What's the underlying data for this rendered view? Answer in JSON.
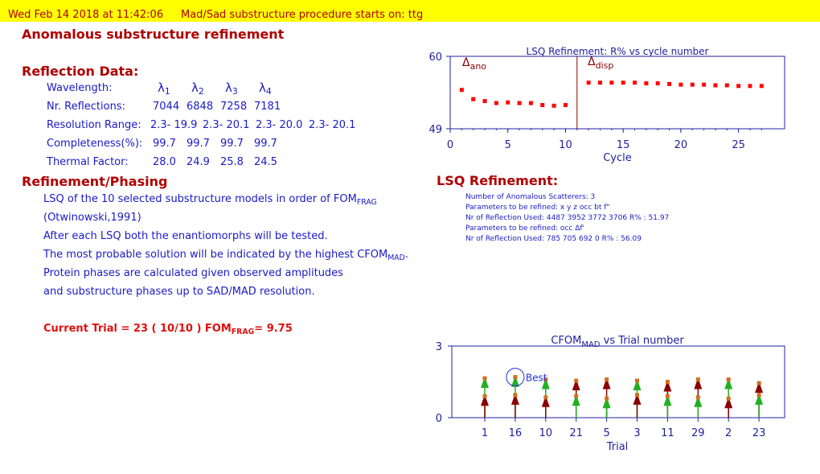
{
  "banner": {
    "datetime": "Wed Feb 14  2018 at 11:42:06",
    "message": "Mad/Sad substructure procedure starts on: ttg"
  },
  "title": "Anomalous substructure refinement",
  "reflection": {
    "heading": "Reflection Data:",
    "wavelength_label": "Wavelength:",
    "lambda_symbol": "λ",
    "lambda_subs": [
      "1",
      "2",
      "3",
      "4"
    ],
    "rows": [
      {
        "label": "Nr. Reflections:",
        "values": [
          "7044",
          "6848",
          "7258",
          "7181"
        ]
      },
      {
        "label": "Resolution Range:",
        "values": [
          "2.3- 19.9",
          "2.3- 20.1",
          "2.3- 20.0",
          "2.3- 20.1"
        ]
      },
      {
        "label": "Completeness(%):",
        "values": [
          "99.7",
          "99.7",
          "99.7",
          "99.7"
        ]
      },
      {
        "label": "Thermal Factor:",
        "values": [
          "28.0",
          "24.9",
          "25.8",
          "24.5"
        ]
      }
    ]
  },
  "refinement": {
    "heading": "Refinement/Phasing",
    "line1_main": "LSQ of the 10 selected substructure models in order of FOM",
    "line1_sub": "FRAG",
    "line2": "(Otwinowski,1991)",
    "line3": "After each LSQ both the enantiomorphs will be tested.",
    "line4_main": "The most probable solution will be indicated by the highest CFOM",
    "line4_sub": "MAD",
    "line4_end": ".",
    "line5": "Protein phases are calculated given observed amplitudes",
    "line6": "and substructure phases up to SAD/MAD resolution."
  },
  "current_trial": {
    "prefix": "Current Trial = 23 ( 10/10 ) FOM",
    "sub": "FRAG",
    "suffix": "= 9.75"
  },
  "lsq_chart": {
    "title": "LSQ Refinement: R% vs cycle number",
    "xlabel": "Cycle",
    "ano_label": "Δ",
    "ano_sub": "ano",
    "disp_label": "Δ",
    "disp_sub": "disp"
  },
  "lsq_info": {
    "heading": "LSQ Refinement:",
    "lines": [
      "Number of Anomalous Scatterers:    3",
      "Parameters to be refined: x y z occ bt f\"",
      "Nr of Reflection Used:   4487  3952  3772  3706    R% :  51.97",
      "Parameters to be refined: occ Δf'",
      "Nr of Reflection Used:    785    705    692      0    R% : 56.09"
    ]
  },
  "cfom_chart": {
    "title_main": "CFOM",
    "title_sub": "MAD",
    "title_end": " vs Trial number",
    "xlabel": "Trial",
    "best_label": "Best"
  },
  "colors": {
    "banner_bg": "#ffff00",
    "heading_red": "#b00000",
    "text_blue": "#1a1ac8",
    "highlight_red": "#e01010",
    "axis_blue": "#2020a0",
    "point_red": "#ff0000",
    "green": "#20b020",
    "dark_red": "#8b0000",
    "orange": "#d07020"
  },
  "chart_data": [
    {
      "type": "scatter",
      "title": "LSQ Refinement: R% vs cycle number",
      "xlabel": "Cycle",
      "ylabel": "",
      "xlim": [
        0,
        29
      ],
      "ylim": [
        49,
        60
      ],
      "xticks": [
        0,
        5,
        10,
        15,
        20,
        25
      ],
      "yticks": [
        49,
        60
      ],
      "divider_x": 11,
      "annotations": [
        "Δano",
        "Δdisp"
      ],
      "x": [
        1,
        2,
        3,
        4,
        5,
        6,
        7,
        8,
        9,
        10,
        12,
        13,
        14,
        15,
        16,
        17,
        18,
        19,
        20,
        21,
        22,
        23,
        24,
        25,
        26,
        27
      ],
      "y": [
        54.9,
        53.5,
        53.2,
        52.9,
        53.0,
        52.9,
        52.9,
        52.6,
        52.5,
        52.6,
        56.0,
        56.0,
        56.0,
        56.0,
        56.0,
        55.9,
        55.9,
        55.8,
        55.7,
        55.7,
        55.7,
        55.6,
        55.6,
        55.5,
        55.5,
        55.5
      ]
    },
    {
      "type": "scatter",
      "title": "CFOMMAD vs Trial number",
      "xlabel": "Trial",
      "ylabel": "",
      "ylim": [
        0,
        3
      ],
      "yticks": [
        0,
        3
      ],
      "categories": [
        "1",
        "16",
        "10",
        "21",
        "5",
        "3",
        "11",
        "29",
        "2",
        "23"
      ],
      "series": [
        {
          "values": [
            1.65,
            1.7,
            1.6,
            0.9,
            0.8,
            1.55,
            0.9,
            0.85,
            1.6,
            0.95
          ]
        },
        {
          "values": [
            0.9,
            0.95,
            0.85,
            1.55,
            1.6,
            0.95,
            1.5,
            1.6,
            0.8,
            1.45
          ]
        }
      ],
      "best_index": 1,
      "annotations": [
        "Best"
      ]
    }
  ]
}
